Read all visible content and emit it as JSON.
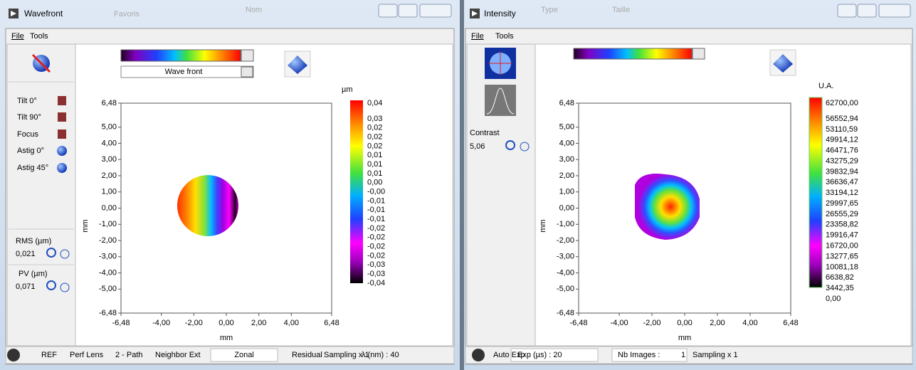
{
  "background": [
    "Favoris",
    "Nom",
    "Type",
    "Taille"
  ],
  "wavefront": {
    "title": "Wavefront",
    "menu": [
      "File",
      "Tools"
    ],
    "colormap_select": "Wave front",
    "modes": [
      "Tilt 0°",
      "Tilt 90°",
      "Focus",
      "Astig 0°",
      "Astig 45°"
    ],
    "rms": {
      "label": "RMS (µm)",
      "value": "0,021"
    },
    "pv": {
      "label": "PV (µm)",
      "value": "0,071"
    },
    "plot": {
      "xlabel": "mm",
      "ylabel": "mm",
      "xlim": [
        -6.48,
        6.48
      ],
      "ylim": [
        -6.48,
        6.48
      ],
      "xticks": [
        {
          "value": -6.48,
          "label": "-6,48"
        },
        {
          "value": -4,
          "label": "-4,00"
        },
        {
          "value": -2,
          "label": "-2,00"
        },
        {
          "value": 0,
          "label": "0,00"
        },
        {
          "value": 2,
          "label": "2,00"
        },
        {
          "value": 4,
          "label": "4,00"
        },
        {
          "value": 6.48,
          "label": "6,48"
        }
      ],
      "yticks": [
        {
          "value": 6.48,
          "label": "6,48"
        },
        {
          "value": 5,
          "label": "5,00"
        },
        {
          "value": 4,
          "label": "4,00"
        },
        {
          "value": 3,
          "label": "3,00"
        },
        {
          "value": 2,
          "label": "2,00"
        },
        {
          "value": 1,
          "label": "1,00"
        },
        {
          "value": 0,
          "label": "0,00"
        },
        {
          "value": -1,
          "label": "-1,00"
        },
        {
          "value": -2,
          "label": "-2,00"
        },
        {
          "value": -3,
          "label": "-3,00"
        },
        {
          "value": -4,
          "label": "-4,00"
        },
        {
          "value": -5,
          "label": "-5,00"
        },
        {
          "value": -6.48,
          "label": "-6,48"
        }
      ]
    },
    "colorbar": {
      "unit": "µm",
      "labels": [
        "0,04",
        "0,03",
        "0,02",
        "0,02",
        "0,02",
        "0,01",
        "0,01",
        "0,01",
        "0,00",
        "-0,00",
        "-0,01",
        "-0,01",
        "-0,01",
        "-0,02",
        "-0,02",
        "-0,02",
        "-0,02",
        "-0,03",
        "-0,03",
        "-0,04"
      ]
    },
    "status": [
      "REF",
      "Perf Lens",
      "2 - Path",
      "Neighbor Ext",
      "Zonal",
      "Residual",
      "Sampling x 1",
      "λ (nm) : 40"
    ]
  },
  "intensity": {
    "title": "Intensity",
    "menu": [
      "File",
      "Tools"
    ],
    "contrast": {
      "label": "Contrast",
      "value": "5,06"
    },
    "plot": {
      "xlabel": "mm",
      "ylabel": "mm",
      "xlim": [
        -6.48,
        6.48
      ],
      "ylim": [
        -6.48,
        6.48
      ],
      "xticks": [
        {
          "value": -6.48,
          "label": "-6,48"
        },
        {
          "value": -4,
          "label": "-4,00"
        },
        {
          "value": -2,
          "label": "-2,00"
        },
        {
          "value": 0,
          "label": "0,00"
        },
        {
          "value": 2,
          "label": "2,00"
        },
        {
          "value": 4,
          "label": "4,00"
        },
        {
          "value": 6.48,
          "label": "6,48"
        }
      ],
      "yticks": [
        {
          "value": 6.48,
          "label": "6,48"
        },
        {
          "value": 5,
          "label": "5,00"
        },
        {
          "value": 4,
          "label": "4,00"
        },
        {
          "value": 3,
          "label": "3,00"
        },
        {
          "value": 2,
          "label": "2,00"
        },
        {
          "value": 1,
          "label": "1,00"
        },
        {
          "value": 0,
          "label": "0,00"
        },
        {
          "value": -1,
          "label": "-1,00"
        },
        {
          "value": -2,
          "label": "-2,00"
        },
        {
          "value": -3,
          "label": "-3,00"
        },
        {
          "value": -4,
          "label": "-4,00"
        },
        {
          "value": -5,
          "label": "-5,00"
        },
        {
          "value": -6.48,
          "label": "-6,48"
        }
      ]
    },
    "colorbar": {
      "unit": "U.A.",
      "labels": [
        "62700,00",
        "56552,94",
        "53110,59",
        "49914,12",
        "46471,76",
        "43275,29",
        "39832,94",
        "36636,47",
        "33194,12",
        "29997,65",
        "26555,29",
        "23358,82",
        "19916,47",
        "16720,00",
        "13277,65",
        "10081,18",
        "6638,82",
        "3442,35",
        "0,00"
      ]
    },
    "status": [
      "Auto Exp",
      "Exp (µs) : 20",
      "Nb Images :",
      "1",
      "Sampling x 1"
    ]
  }
}
